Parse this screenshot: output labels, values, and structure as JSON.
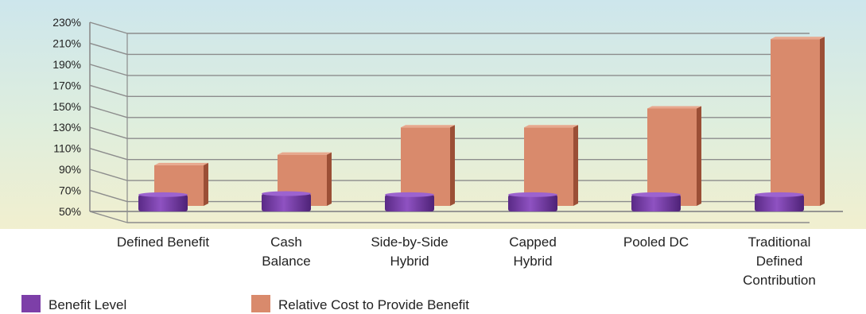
{
  "chart_data": {
    "type": "bar",
    "title": "",
    "xlabel": "",
    "ylabel": "",
    "ylim": [
      50,
      230
    ],
    "y_ticks": [
      "50%",
      "70%",
      "90%",
      "110%",
      "130%",
      "150%",
      "170%",
      "190%",
      "210%",
      "230%"
    ],
    "categories": [
      [
        "Defined Benefit"
      ],
      [
        "Cash",
        "Balance"
      ],
      [
        "Side-by-Side",
        "Hybrid"
      ],
      [
        "Capped",
        "Hybrid"
      ],
      [
        "Pooled DC"
      ],
      [
        "Traditional",
        "Defined",
        "Contribution"
      ]
    ],
    "series": [
      {
        "name": "Benefit Level",
        "color": "#7d3fa8",
        "values": [
          69,
          70,
          69,
          69,
          69,
          69
        ]
      },
      {
        "name": "Relative Cost to Provide Benefit",
        "color": "#d98a6c",
        "values": [
          100,
          110,
          136,
          136,
          154,
          220
        ]
      }
    ],
    "grid": true,
    "legend_position": "bottom-left"
  }
}
